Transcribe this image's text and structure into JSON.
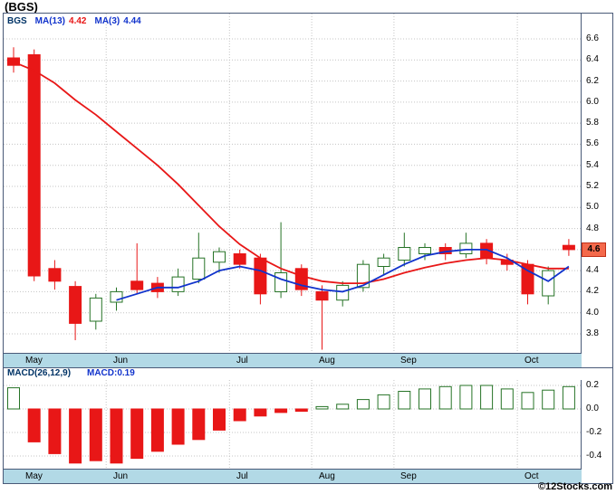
{
  "page_title": "(BGS)",
  "copyright": "©12Stocks.com",
  "colors": {
    "up_fill": "#ffffff",
    "up_stroke": "#267326",
    "down": "#e81717",
    "ma13": "#e81717",
    "ma3": "#1133cc",
    "band_bg": "#b2d9e6",
    "grid": "#c4c4c4",
    "badge_bg": "#f4694b",
    "panel_border": "#4a5a78"
  },
  "legend": {
    "symbol": "BGS",
    "ma13_label": "MA(13)",
    "ma13_value": "4.42",
    "ma3_label": "MA(3)",
    "ma3_value": "4.44"
  },
  "macd_header": {
    "label": "MACD(26,12,9)",
    "value": "MACD:0.19"
  },
  "months": [
    {
      "label": "May",
      "index": 0
    },
    {
      "label": "Jun",
      "index": 5
    },
    {
      "label": "Jul",
      "index": 11
    },
    {
      "label": "Aug",
      "index": 15
    },
    {
      "label": "Sep",
      "index": 19
    },
    {
      "label": "Oct",
      "index": 25
    }
  ],
  "chart_data": [
    {
      "type": "candlestick",
      "title": "BGS weekly price with MA(13) and MA(3)",
      "ylabel": "Price",
      "ylim": [
        3.63,
        6.84
      ],
      "grid": true,
      "current_price": "4.6",
      "y_ticks": [
        "6.6",
        "6.4",
        "6.2",
        "6.0",
        "5.8",
        "5.6",
        "5.4",
        "5.2",
        "5.0",
        "4.8",
        "4.6",
        "4.4",
        "4.2",
        "4.0",
        "3.8"
      ],
      "x_categories": [
        "May",
        "Jun",
        "Jul",
        "Aug",
        "Sep",
        "Oct"
      ],
      "candles": [
        [
          6.42,
          6.52,
          6.28,
          6.35
        ],
        [
          6.45,
          6.5,
          4.3,
          4.35
        ],
        [
          4.42,
          4.5,
          4.22,
          4.3
        ],
        [
          4.25,
          4.3,
          3.74,
          3.9
        ],
        [
          3.92,
          4.18,
          3.84,
          4.14
        ],
        [
          4.1,
          4.24,
          4.02,
          4.2
        ],
        [
          4.3,
          4.66,
          4.18,
          4.22
        ],
        [
          4.28,
          4.34,
          4.14,
          4.2
        ],
        [
          4.2,
          4.42,
          4.16,
          4.34
        ],
        [
          4.32,
          4.76,
          4.28,
          4.52
        ],
        [
          4.48,
          4.62,
          4.38,
          4.58
        ],
        [
          4.56,
          4.6,
          4.42,
          4.46
        ],
        [
          4.52,
          4.56,
          4.08,
          4.18
        ],
        [
          4.2,
          4.86,
          4.14,
          4.38
        ],
        [
          4.42,
          4.46,
          4.16,
          4.22
        ],
        [
          4.2,
          4.26,
          3.65,
          4.12
        ],
        [
          4.12,
          4.3,
          4.06,
          4.26
        ],
        [
          4.24,
          4.5,
          4.2,
          4.46
        ],
        [
          4.44,
          4.56,
          4.36,
          4.52
        ],
        [
          4.5,
          4.76,
          4.44,
          4.62
        ],
        [
          4.56,
          4.66,
          4.5,
          4.62
        ],
        [
          4.62,
          4.66,
          4.5,
          4.56
        ],
        [
          4.56,
          4.76,
          4.52,
          4.66
        ],
        [
          4.66,
          4.7,
          4.46,
          4.52
        ],
        [
          4.5,
          4.56,
          4.4,
          4.46
        ],
        [
          4.46,
          4.5,
          4.08,
          4.18
        ],
        [
          4.16,
          4.44,
          4.08,
          4.4
        ],
        [
          4.64,
          4.7,
          4.54,
          4.6
        ]
      ],
      "ma13": [
        6.38,
        6.3,
        6.18,
        6.02,
        5.88,
        5.72,
        5.56,
        5.4,
        5.22,
        5.02,
        4.82,
        4.65,
        4.52,
        4.42,
        4.35,
        4.3,
        4.28,
        4.28,
        4.32,
        4.38,
        4.43,
        4.47,
        4.5,
        4.52,
        4.5,
        4.46,
        4.42,
        4.42
      ],
      "ma3": [
        null,
        null,
        null,
        null,
        null,
        4.12,
        4.18,
        4.24,
        4.24,
        4.3,
        4.4,
        4.44,
        4.4,
        4.32,
        4.26,
        4.22,
        4.2,
        4.26,
        4.36,
        4.46,
        4.54,
        4.58,
        4.6,
        4.6,
        4.52,
        4.4,
        4.3,
        4.44
      ]
    },
    {
      "type": "bar",
      "title": "MACD(26,12,9)",
      "ylabel": "MACD",
      "ylim": [
        -0.5,
        0.25
      ],
      "grid": true,
      "last_value": 0.19,
      "y_ticks": [
        "0.2",
        "0.0",
        "-0.2",
        "-0.4"
      ],
      "values": [
        0.18,
        -0.28,
        -0.38,
        -0.46,
        -0.44,
        -0.46,
        -0.42,
        -0.36,
        -0.3,
        -0.26,
        -0.18,
        -0.1,
        -0.06,
        -0.03,
        -0.02,
        0.02,
        0.04,
        0.08,
        0.12,
        0.15,
        0.17,
        0.19,
        0.2,
        0.2,
        0.17,
        0.14,
        0.16,
        0.19
      ]
    }
  ]
}
